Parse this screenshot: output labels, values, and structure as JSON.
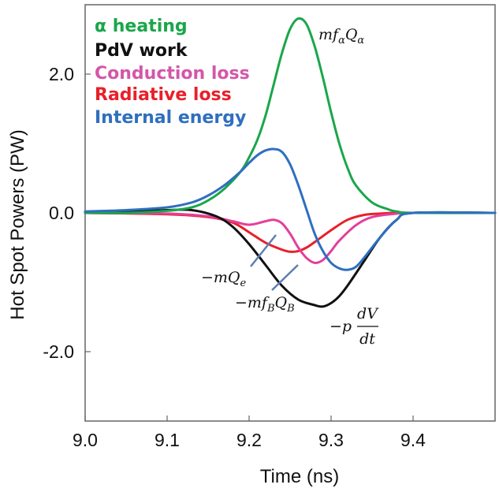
{
  "chart_data": {
    "type": "line",
    "title": "",
    "xlabel": "Time (ns)",
    "ylabel": "Hot Spot Powers (PW)",
    "xlim": [
      9.0,
      9.5
    ],
    "ylim": [
      -3.0,
      3.0
    ],
    "x_ticks": [
      {
        "value": 9.0,
        "label": "9.0"
      },
      {
        "value": 9.1,
        "label": "9.1"
      },
      {
        "value": 9.2,
        "label": "9.2"
      },
      {
        "value": 9.3,
        "label": "9.3"
      },
      {
        "value": 9.4,
        "label": "9.4"
      }
    ],
    "y_ticks": [
      {
        "value": 2.0,
        "label": "2.0"
      },
      {
        "value": 0.0,
        "label": "0.0"
      },
      {
        "value": -2.0,
        "label": "-2.0"
      }
    ],
    "grid": false,
    "legend_position": "top-left",
    "series": [
      {
        "name": "α heating",
        "color": "#1aa64b",
        "x": [
          9.0,
          9.05,
          9.1,
          9.13,
          9.15,
          9.17,
          9.19,
          9.2,
          9.21,
          9.22,
          9.23,
          9.24,
          9.25,
          9.26,
          9.27,
          9.28,
          9.29,
          9.3,
          9.31,
          9.32,
          9.33,
          9.35,
          9.37,
          9.38,
          9.4,
          9.5
        ],
        "y": [
          0.0,
          0.0,
          0.03,
          0.08,
          0.18,
          0.35,
          0.6,
          0.8,
          1.05,
          1.4,
          1.85,
          2.3,
          2.65,
          2.8,
          2.72,
          2.4,
          1.95,
          1.45,
          1.0,
          0.65,
          0.4,
          0.15,
          0.05,
          0.02,
          0.0,
          0.0
        ]
      },
      {
        "name": "PdV work",
        "color": "#111111",
        "x": [
          9.0,
          9.05,
          9.1,
          9.13,
          9.16,
          9.18,
          9.2,
          9.22,
          9.24,
          9.26,
          9.28,
          9.29,
          9.3,
          9.31,
          9.32,
          9.34,
          9.36,
          9.38,
          9.4,
          9.5
        ],
        "y": [
          0.0,
          0.02,
          0.04,
          0.04,
          -0.05,
          -0.2,
          -0.45,
          -0.75,
          -1.05,
          -1.25,
          -1.33,
          -1.35,
          -1.3,
          -1.2,
          -1.05,
          -0.7,
          -0.35,
          -0.1,
          0.0,
          0.0
        ]
      },
      {
        "name": "Conduction loss",
        "color": "#e23f9b",
        "x": [
          9.0,
          9.1,
          9.15,
          9.18,
          9.2,
          9.22,
          9.23,
          9.24,
          9.25,
          9.26,
          9.27,
          9.28,
          9.29,
          9.3,
          9.31,
          9.33,
          9.35,
          9.38,
          9.4,
          9.5
        ],
        "y": [
          0.0,
          -0.01,
          -0.05,
          -0.12,
          -0.17,
          -0.12,
          -0.1,
          -0.15,
          -0.3,
          -0.5,
          -0.65,
          -0.72,
          -0.68,
          -0.55,
          -0.4,
          -0.18,
          -0.06,
          -0.01,
          0.0,
          0.0
        ]
      },
      {
        "name": "Radiative loss",
        "color": "#e8202a",
        "x": [
          9.0,
          9.1,
          9.15,
          9.18,
          9.2,
          9.22,
          9.24,
          9.25,
          9.26,
          9.27,
          9.28,
          9.3,
          9.32,
          9.34,
          9.36,
          9.38,
          9.4,
          9.5
        ],
        "y": [
          0.0,
          -0.02,
          -0.06,
          -0.14,
          -0.28,
          -0.43,
          -0.53,
          -0.56,
          -0.55,
          -0.5,
          -0.42,
          -0.25,
          -0.1,
          -0.03,
          -0.01,
          0.0,
          0.0,
          0.0
        ]
      },
      {
        "name": "Internal energy",
        "color": "#2f6fbf",
        "x": [
          9.0,
          9.05,
          9.1,
          9.13,
          9.15,
          9.17,
          9.19,
          9.2,
          9.21,
          9.22,
          9.23,
          9.24,
          9.25,
          9.26,
          9.27,
          9.28,
          9.29,
          9.3,
          9.31,
          9.32,
          9.33,
          9.34,
          9.36,
          9.38,
          9.4,
          9.5
        ],
        "y": [
          0.02,
          0.04,
          0.08,
          0.15,
          0.25,
          0.4,
          0.6,
          0.72,
          0.83,
          0.9,
          0.92,
          0.88,
          0.7,
          0.4,
          0.05,
          -0.3,
          -0.55,
          -0.72,
          -0.8,
          -0.82,
          -0.78,
          -0.65,
          -0.35,
          -0.1,
          0.0,
          0.0
        ]
      }
    ],
    "annotations": {
      "alpha": {
        "main": "mf",
        "sub1": "α",
        "mid": "Q",
        "sub2": "α"
      },
      "conduction": {
        "main": "−mQ",
        "sub": "e"
      },
      "radiative": {
        "main": "−mf",
        "sub1": "B",
        "mid": "Q",
        "sub2": "B"
      },
      "pdv": {
        "prefix": "−p",
        "numerator": "dV",
        "denominator": "dt"
      }
    }
  }
}
